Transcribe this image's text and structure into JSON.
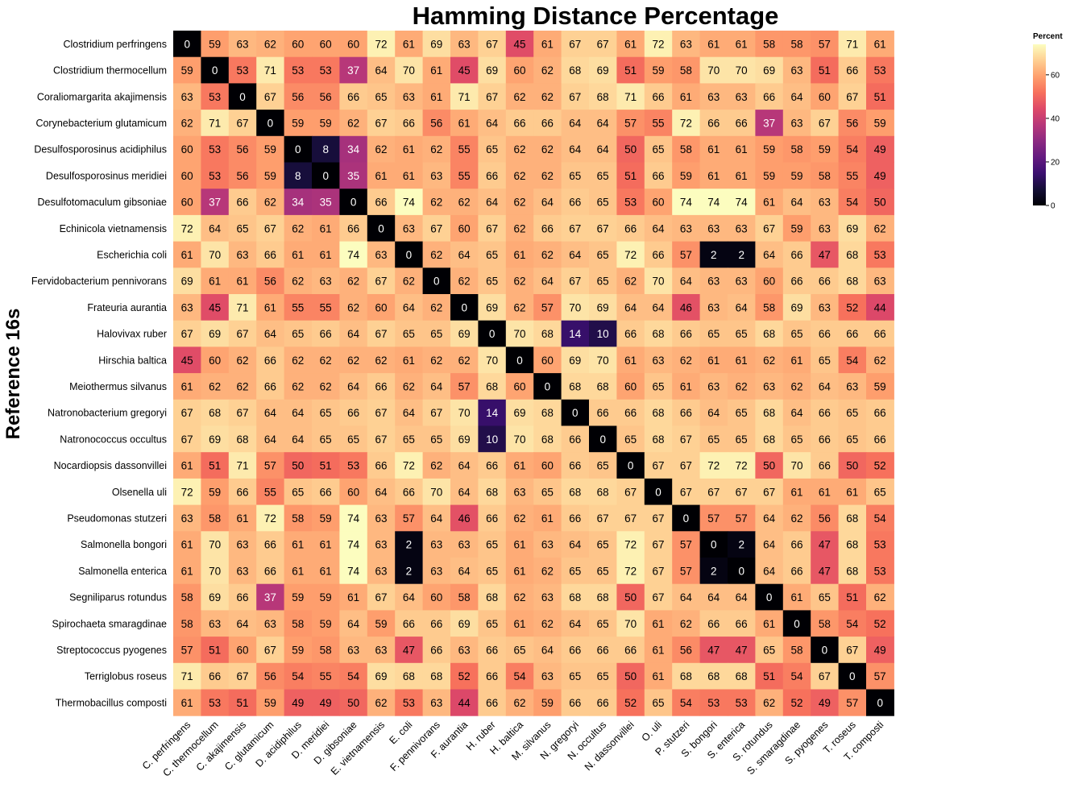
{
  "chart_data": {
    "type": "heatmap",
    "title": "Hamming Distance Percentage",
    "ylabel": "Reference 16s",
    "xlabel": "",
    "rows": [
      "Clostridium perfringens",
      "Clostridium thermocellum",
      "Coraliomargarita akajimensis",
      "Corynebacterium glutamicum",
      "Desulfosporosinus acidiphilus",
      "Desulfosporosinus meridiei",
      "Desulfotomaculum gibsoniae",
      "Echinicola vietnamensis",
      "Escherichia coli",
      "Fervidobacterium pennivorans",
      "Frateuria aurantia",
      "Halovivax ruber",
      "Hirschia baltica",
      "Meiothermus silvanus",
      "Natronobacterium gregoryi",
      "Natronococcus occultus",
      "Nocardiopsis dassonvillei",
      "Olsenella uli",
      "Pseudomonas stutzeri",
      "Salmonella bongori",
      "Salmonella enterica",
      "Segniliparus rotundus",
      "Spirochaeta smaragdinae",
      "Streptococcus pyogenes",
      "Terriglobus roseus",
      "Thermobacillus composti"
    ],
    "columns": [
      "C. perfringens",
      "C. thermocellum",
      "C. akajimensis",
      "C. glutamicum",
      "D. acidiphilus",
      "D. meridiei",
      "D. gibsoniae",
      "E. vietnamensis",
      "E. coli",
      "F. pennivorans",
      "F. aurantia",
      "H. ruber",
      "H. baltica",
      "M. silvanus",
      "N. gregoryi",
      "N. occultus",
      "N. dassonvillei",
      "O. uli",
      "P. stutzeri",
      "S. bongori",
      "S. enterica",
      "S. rotundus",
      "S. smaragdinae",
      "S. pyogenes",
      "T. roseus",
      "T. composti"
    ],
    "values": [
      [
        0,
        59,
        63,
        62,
        60,
        60,
        60,
        72,
        61,
        69,
        63,
        67,
        45,
        61,
        67,
        67,
        61,
        72,
        63,
        61,
        61,
        58,
        58,
        57,
        71,
        61
      ],
      [
        59,
        0,
        53,
        71,
        53,
        53,
        37,
        64,
        70,
        61,
        45,
        69,
        60,
        62,
        68,
        69,
        51,
        59,
        58,
        70,
        70,
        69,
        63,
        51,
        66,
        53
      ],
      [
        63,
        53,
        0,
        67,
        56,
        56,
        66,
        65,
        63,
        61,
        71,
        67,
        62,
        62,
        67,
        68,
        71,
        66,
        61,
        63,
        63,
        66,
        64,
        60,
        67,
        51
      ],
      [
        62,
        71,
        67,
        0,
        59,
        59,
        62,
        67,
        66,
        56,
        61,
        64,
        66,
        66,
        64,
        64,
        57,
        55,
        72,
        66,
        66,
        37,
        63,
        67,
        56,
        59
      ],
      [
        60,
        53,
        56,
        59,
        0,
        8,
        34,
        62,
        61,
        62,
        55,
        65,
        62,
        62,
        64,
        64,
        50,
        65,
        58,
        61,
        61,
        59,
        58,
        59,
        54,
        49
      ],
      [
        60,
        53,
        56,
        59,
        8,
        0,
        35,
        61,
        61,
        63,
        55,
        66,
        62,
        62,
        65,
        65,
        51,
        66,
        59,
        61,
        61,
        59,
        59,
        58,
        55,
        49
      ],
      [
        60,
        37,
        66,
        62,
        34,
        35,
        0,
        66,
        74,
        62,
        62,
        64,
        62,
        64,
        66,
        65,
        53,
        60,
        74,
        74,
        74,
        61,
        64,
        63,
        54,
        50
      ],
      [
        72,
        64,
        65,
        67,
        62,
        61,
        66,
        0,
        63,
        67,
        60,
        67,
        62,
        66,
        67,
        67,
        66,
        64,
        63,
        63,
        63,
        67,
        59,
        63,
        69,
        62
      ],
      [
        61,
        70,
        63,
        66,
        61,
        61,
        74,
        63,
        0,
        62,
        64,
        65,
        61,
        62,
        64,
        65,
        72,
        66,
        57,
        2,
        2,
        64,
        66,
        47,
        68,
        53
      ],
      [
        69,
        61,
        61,
        56,
        62,
        63,
        62,
        67,
        62,
        0,
        62,
        65,
        62,
        64,
        67,
        65,
        62,
        70,
        64,
        63,
        63,
        60,
        66,
        66,
        68,
        63
      ],
      [
        63,
        45,
        71,
        61,
        55,
        55,
        62,
        60,
        64,
        62,
        0,
        69,
        62,
        57,
        70,
        69,
        64,
        64,
        46,
        63,
        64,
        58,
        69,
        63,
        52,
        44
      ],
      [
        67,
        69,
        67,
        64,
        65,
        66,
        64,
        67,
        65,
        65,
        69,
        0,
        70,
        68,
        14,
        10,
        66,
        68,
        66,
        65,
        65,
        68,
        65,
        66,
        66,
        66
      ],
      [
        45,
        60,
        62,
        66,
        62,
        62,
        62,
        62,
        61,
        62,
        62,
        70,
        0,
        60,
        69,
        70,
        61,
        63,
        62,
        61,
        61,
        62,
        61,
        65,
        54,
        62
      ],
      [
        61,
        62,
        62,
        66,
        62,
        62,
        64,
        66,
        62,
        64,
        57,
        68,
        60,
        0,
        68,
        68,
        60,
        65,
        61,
        63,
        62,
        63,
        62,
        64,
        63,
        59
      ],
      [
        67,
        68,
        67,
        64,
        64,
        65,
        66,
        67,
        64,
        67,
        70,
        14,
        69,
        68,
        0,
        66,
        66,
        68,
        66,
        64,
        65,
        68,
        64,
        66,
        65,
        66
      ],
      [
        67,
        69,
        68,
        64,
        64,
        65,
        65,
        67,
        65,
        65,
        69,
        10,
        70,
        68,
        66,
        0,
        65,
        68,
        67,
        65,
        65,
        68,
        65,
        66,
        65,
        66
      ],
      [
        61,
        51,
        71,
        57,
        50,
        51,
        53,
        66,
        72,
        62,
        64,
        66,
        61,
        60,
        66,
        65,
        0,
        67,
        67,
        72,
        72,
        50,
        70,
        66,
        50,
        52
      ],
      [
        72,
        59,
        66,
        55,
        65,
        66,
        60,
        64,
        66,
        70,
        64,
        68,
        63,
        65,
        68,
        68,
        67,
        0,
        67,
        67,
        67,
        67,
        61,
        61,
        61,
        65
      ],
      [
        63,
        58,
        61,
        72,
        58,
        59,
        74,
        63,
        57,
        64,
        46,
        66,
        62,
        61,
        66,
        67,
        67,
        67,
        0,
        57,
        57,
        64,
        62,
        56,
        68,
        54
      ],
      [
        61,
        70,
        63,
        66,
        61,
        61,
        74,
        63,
        2,
        63,
        63,
        65,
        61,
        63,
        64,
        65,
        72,
        67,
        57,
        0,
        2,
        64,
        66,
        47,
        68,
        53
      ],
      [
        61,
        70,
        63,
        66,
        61,
        61,
        74,
        63,
        2,
        63,
        64,
        65,
        61,
        62,
        65,
        65,
        72,
        67,
        57,
        2,
        0,
        64,
        66,
        47,
        68,
        53
      ],
      [
        58,
        69,
        66,
        37,
        59,
        59,
        61,
        67,
        64,
        60,
        58,
        68,
        62,
        63,
        68,
        68,
        50,
        67,
        64,
        64,
        64,
        0,
        61,
        65,
        51,
        62
      ],
      [
        58,
        63,
        64,
        63,
        58,
        59,
        64,
        59,
        66,
        66,
        69,
        65,
        61,
        62,
        64,
        65,
        70,
        61,
        62,
        66,
        66,
        61,
        0,
        58,
        54,
        52
      ],
      [
        57,
        51,
        60,
        67,
        59,
        58,
        63,
        63,
        47,
        66,
        63,
        66,
        65,
        64,
        66,
        66,
        66,
        61,
        56,
        47,
        47,
        65,
        58,
        0,
        67,
        49
      ],
      [
        71,
        66,
        67,
        56,
        54,
        55,
        54,
        69,
        68,
        68,
        52,
        66,
        54,
        63,
        65,
        65,
        50,
        61,
        68,
        68,
        68,
        51,
        54,
        67,
        0,
        57
      ],
      [
        61,
        53,
        51,
        59,
        49,
        49,
        50,
        62,
        53,
        63,
        44,
        66,
        62,
        59,
        66,
        66,
        52,
        65,
        54,
        53,
        53,
        62,
        52,
        49,
        57,
        0
      ]
    ],
    "colorscale": "magma",
    "zmin": 0,
    "zmax": 74,
    "legend": {
      "title": "Percent",
      "ticks": [
        0,
        20,
        40,
        60
      ],
      "placement": "right"
    },
    "grid": false
  }
}
